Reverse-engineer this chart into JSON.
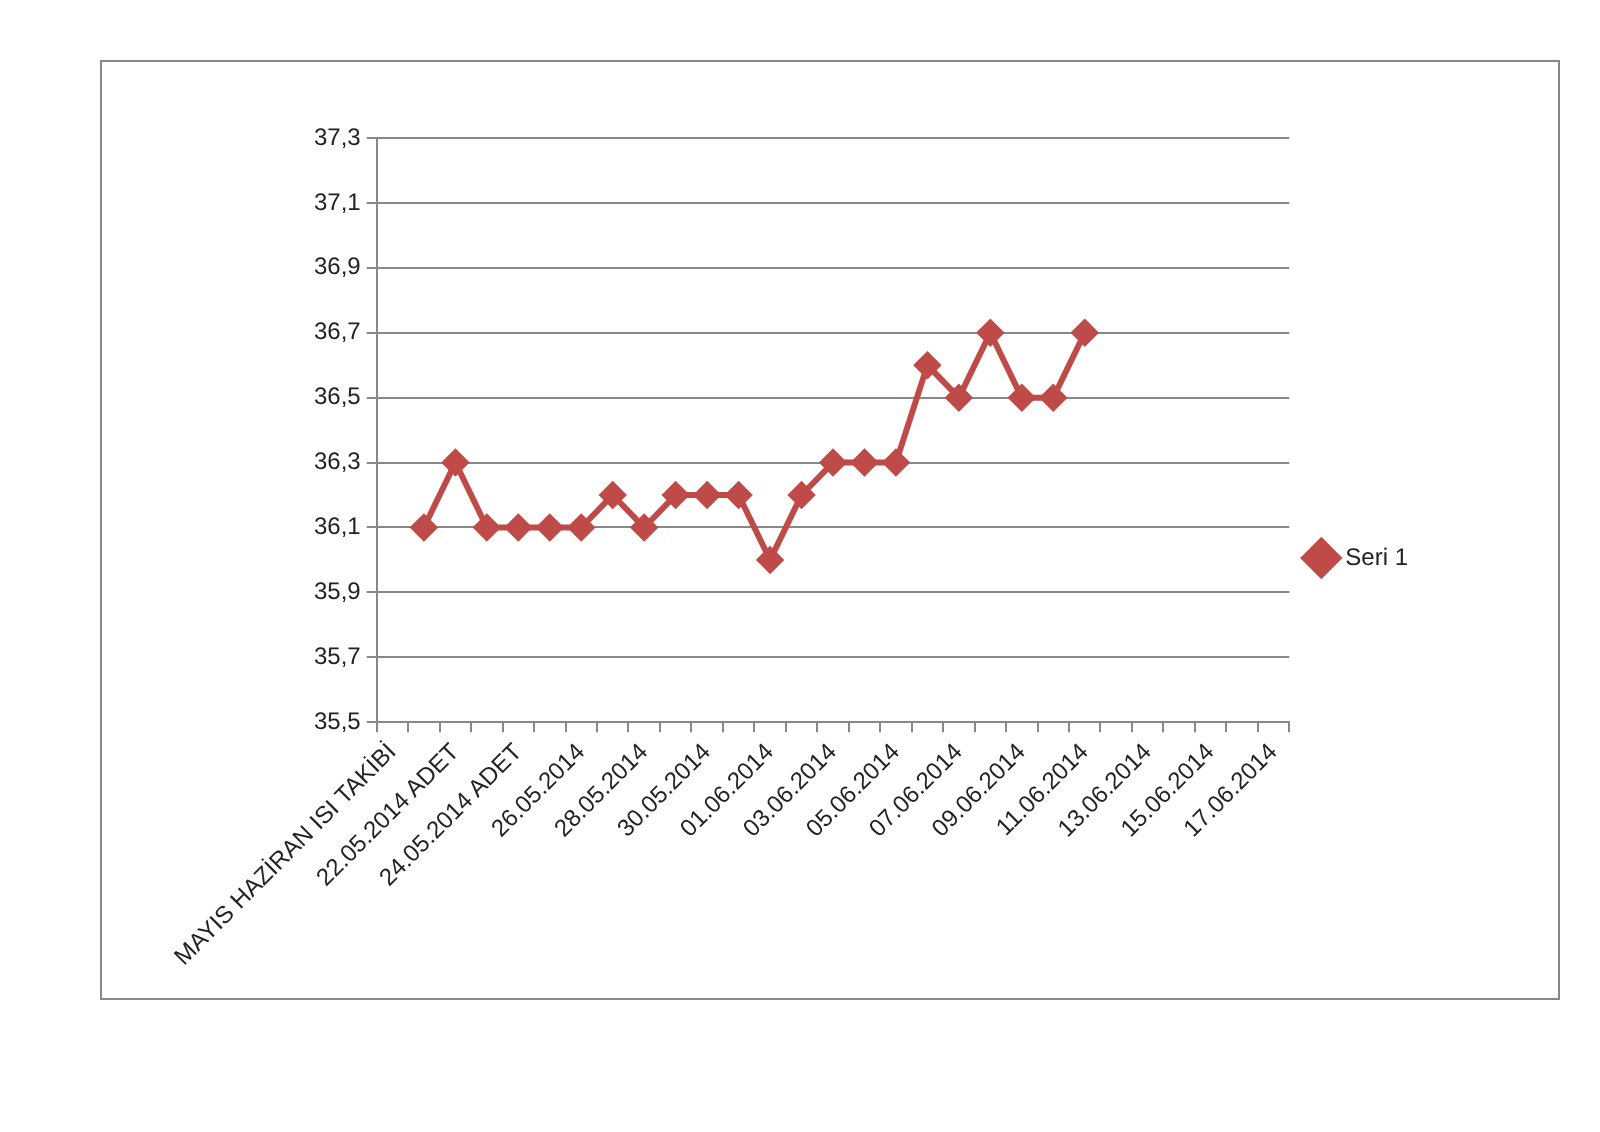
{
  "chart_data": {
    "type": "line",
    "categories": [
      "MAYIS HAZİRAN ISI TAKİBİ",
      null,
      "22.05.2014 ADET",
      null,
      "24.05.2014 ADET",
      null,
      "26.05.2014",
      null,
      "28.05.2014",
      null,
      "30.05.2014",
      null,
      "01.06.2014",
      null,
      "03.06.2014",
      null,
      "05.06.2014",
      null,
      "07.06.2014",
      null,
      "09.06.2014",
      null,
      "11.06.2014",
      null,
      "13.06.2014",
      null,
      "15.06.2014",
      null,
      "17.06.2014"
    ],
    "series": [
      {
        "name": "Seri 1",
        "color": "#be4b48",
        "values": [
          null,
          36.1,
          36.3,
          36.1,
          36.1,
          36.1,
          36.1,
          36.2,
          36.1,
          36.2,
          36.2,
          36.2,
          36.0,
          36.2,
          36.3,
          36.3,
          36.3,
          36.6,
          36.5,
          36.7,
          36.5,
          36.5,
          36.7,
          null,
          null,
          null,
          null,
          null,
          null
        ]
      }
    ],
    "ylim": [
      35.5,
      37.3
    ],
    "yticks": [
      {
        "value": 35.5,
        "label": "35,5"
      },
      {
        "value": 35.7,
        "label": "35,7"
      },
      {
        "value": 35.9,
        "label": "35,9"
      },
      {
        "value": 36.1,
        "label": "36,1"
      },
      {
        "value": 36.3,
        "label": "36,3"
      },
      {
        "value": 36.5,
        "label": "36,5"
      },
      {
        "value": 36.7,
        "label": "36,7"
      },
      {
        "value": 36.9,
        "label": "36,9"
      },
      {
        "value": 37.1,
        "label": "37,1"
      },
      {
        "value": 37.3,
        "label": "37,3"
      }
    ],
    "grid": "y",
    "legend": "right",
    "marker": "diamond",
    "line_style": "solid"
  }
}
